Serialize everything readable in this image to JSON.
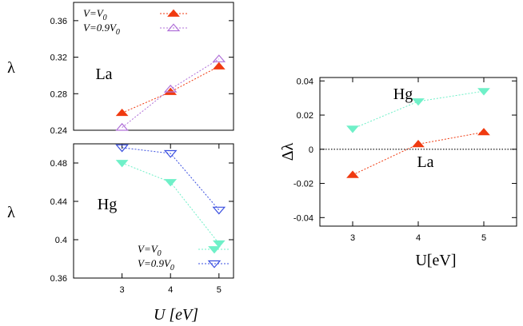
{
  "colors": {
    "red": "#f03a10",
    "purple": "#b070d8",
    "cyan": "#6ff0c8",
    "blue": "#3a4fe0",
    "axis": "#000000"
  },
  "chart_data": [
    {
      "id": "top-left",
      "type": "line",
      "panel_label": "La",
      "ylabel": "λ",
      "xlabel": "",
      "xlim": [
        2,
        5.3
      ],
      "ylim": [
        0.24,
        0.38
      ],
      "xticks": [],
      "yticks": [
        0.24,
        0.28,
        0.32,
        0.36
      ],
      "ytick_labels": [
        "0.24",
        "0.28",
        "0.32",
        "0.36"
      ],
      "series": [
        {
          "name": "V=V0",
          "marker": "triangle-up-filled",
          "color_key": "red",
          "x": [
            3,
            4,
            5
          ],
          "y": [
            0.259,
            0.282,
            0.31
          ]
        },
        {
          "name": "V=0.9V0",
          "marker": "triangle-up-open",
          "color_key": "purple",
          "x": [
            3,
            4,
            5
          ],
          "y": [
            0.243,
            0.285,
            0.318
          ]
        }
      ],
      "legend": {
        "position": "top",
        "entries": [
          {
            "prefix": "V=V",
            "sub": "0",
            "series": 0
          },
          {
            "prefix": "V=0.9V",
            "sub": "0",
            "series": 1
          }
        ]
      }
    },
    {
      "id": "bottom-left",
      "type": "line",
      "panel_label": "Hg",
      "ylabel": "λ",
      "xlabel": "U [eV]",
      "xlim": [
        2,
        5.3
      ],
      "ylim": [
        0.36,
        0.5
      ],
      "xticks": [
        3,
        4,
        5
      ],
      "xtick_labels": [
        "3",
        "4",
        "5"
      ],
      "yticks": [
        0.36,
        0.4,
        0.44,
        0.48
      ],
      "ytick_labels": [
        "0.36",
        "0.4",
        "0.44",
        "0.48"
      ],
      "series": [
        {
          "name": "V=V0",
          "marker": "triangle-down-filled",
          "color_key": "cyan",
          "x": [
            3,
            4,
            5
          ],
          "y": [
            0.48,
            0.46,
            0.396
          ]
        },
        {
          "name": "V=0.9V0",
          "marker": "triangle-down-open",
          "color_key": "blue",
          "x": [
            3,
            4,
            5
          ],
          "y": [
            0.496,
            0.49,
            0.431
          ]
        }
      ],
      "legend": {
        "position": "bottom-right",
        "entries": [
          {
            "prefix": "V=V",
            "sub": "0",
            "series": 0
          },
          {
            "prefix": "V=0.9V",
            "sub": "0",
            "series": 1
          }
        ]
      }
    },
    {
      "id": "right",
      "type": "line",
      "ylabel": "Δλ",
      "xlabel": "U[eV]",
      "xlim": [
        2.5,
        5.5
      ],
      "ylim": [
        -0.045,
        0.042
      ],
      "xticks": [
        3,
        4,
        5
      ],
      "xtick_labels": [
        "3",
        "4",
        "5"
      ],
      "yticks": [
        -0.04,
        -0.02,
        0,
        0.02,
        0.04
      ],
      "ytick_labels": [
        "-0.04",
        "-0.02",
        "0",
        "0.02",
        "0.04"
      ],
      "zero_line": true,
      "annotations": [
        "Hg",
        "La"
      ],
      "series": [
        {
          "name": "Hg",
          "marker": "triangle-down-filled",
          "color_key": "cyan",
          "x": [
            3,
            4,
            5
          ],
          "y": [
            0.012,
            0.028,
            0.034
          ]
        },
        {
          "name": "La",
          "marker": "triangle-up-filled",
          "color_key": "red",
          "x": [
            3,
            4,
            5
          ],
          "y": [
            -0.015,
            0.003,
            0.01
          ]
        }
      ]
    }
  ]
}
